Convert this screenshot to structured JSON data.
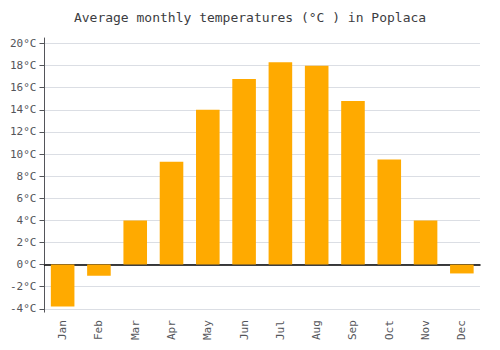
{
  "chart_data": {
    "type": "bar",
    "title": "Average monthly temperatures (°C ) in Poplaca",
    "categories": [
      "Jan",
      "Feb",
      "Mar",
      "Apr",
      "May",
      "Jun",
      "Jul",
      "Aug",
      "Sep",
      "Oct",
      "Nov",
      "Dec"
    ],
    "values": [
      -3.8,
      -1.0,
      4.0,
      9.3,
      14.0,
      16.8,
      18.3,
      18.0,
      14.8,
      9.5,
      4.0,
      -0.8
    ],
    "color": "#FFAA00",
    "ylim": [
      -4.3,
      20.5
    ],
    "yticks": [
      {
        "value": -4,
        "label": "-4°C"
      },
      {
        "value": -2,
        "label": "-2°C"
      },
      {
        "value": 0,
        "label": "0°C"
      },
      {
        "value": 2,
        "label": "2°C"
      },
      {
        "value": 4,
        "label": "4°C"
      },
      {
        "value": 6,
        "label": "6°C"
      },
      {
        "value": 8,
        "label": "8°C"
      },
      {
        "value": 10,
        "label": "10°C"
      },
      {
        "value": 12,
        "label": "12°C"
      },
      {
        "value": 14,
        "label": "14°C"
      },
      {
        "value": 16,
        "label": "16°C"
      },
      {
        "value": 18,
        "label": "18°C"
      },
      {
        "value": 20,
        "label": "20°C"
      }
    ],
    "grid": true
  }
}
